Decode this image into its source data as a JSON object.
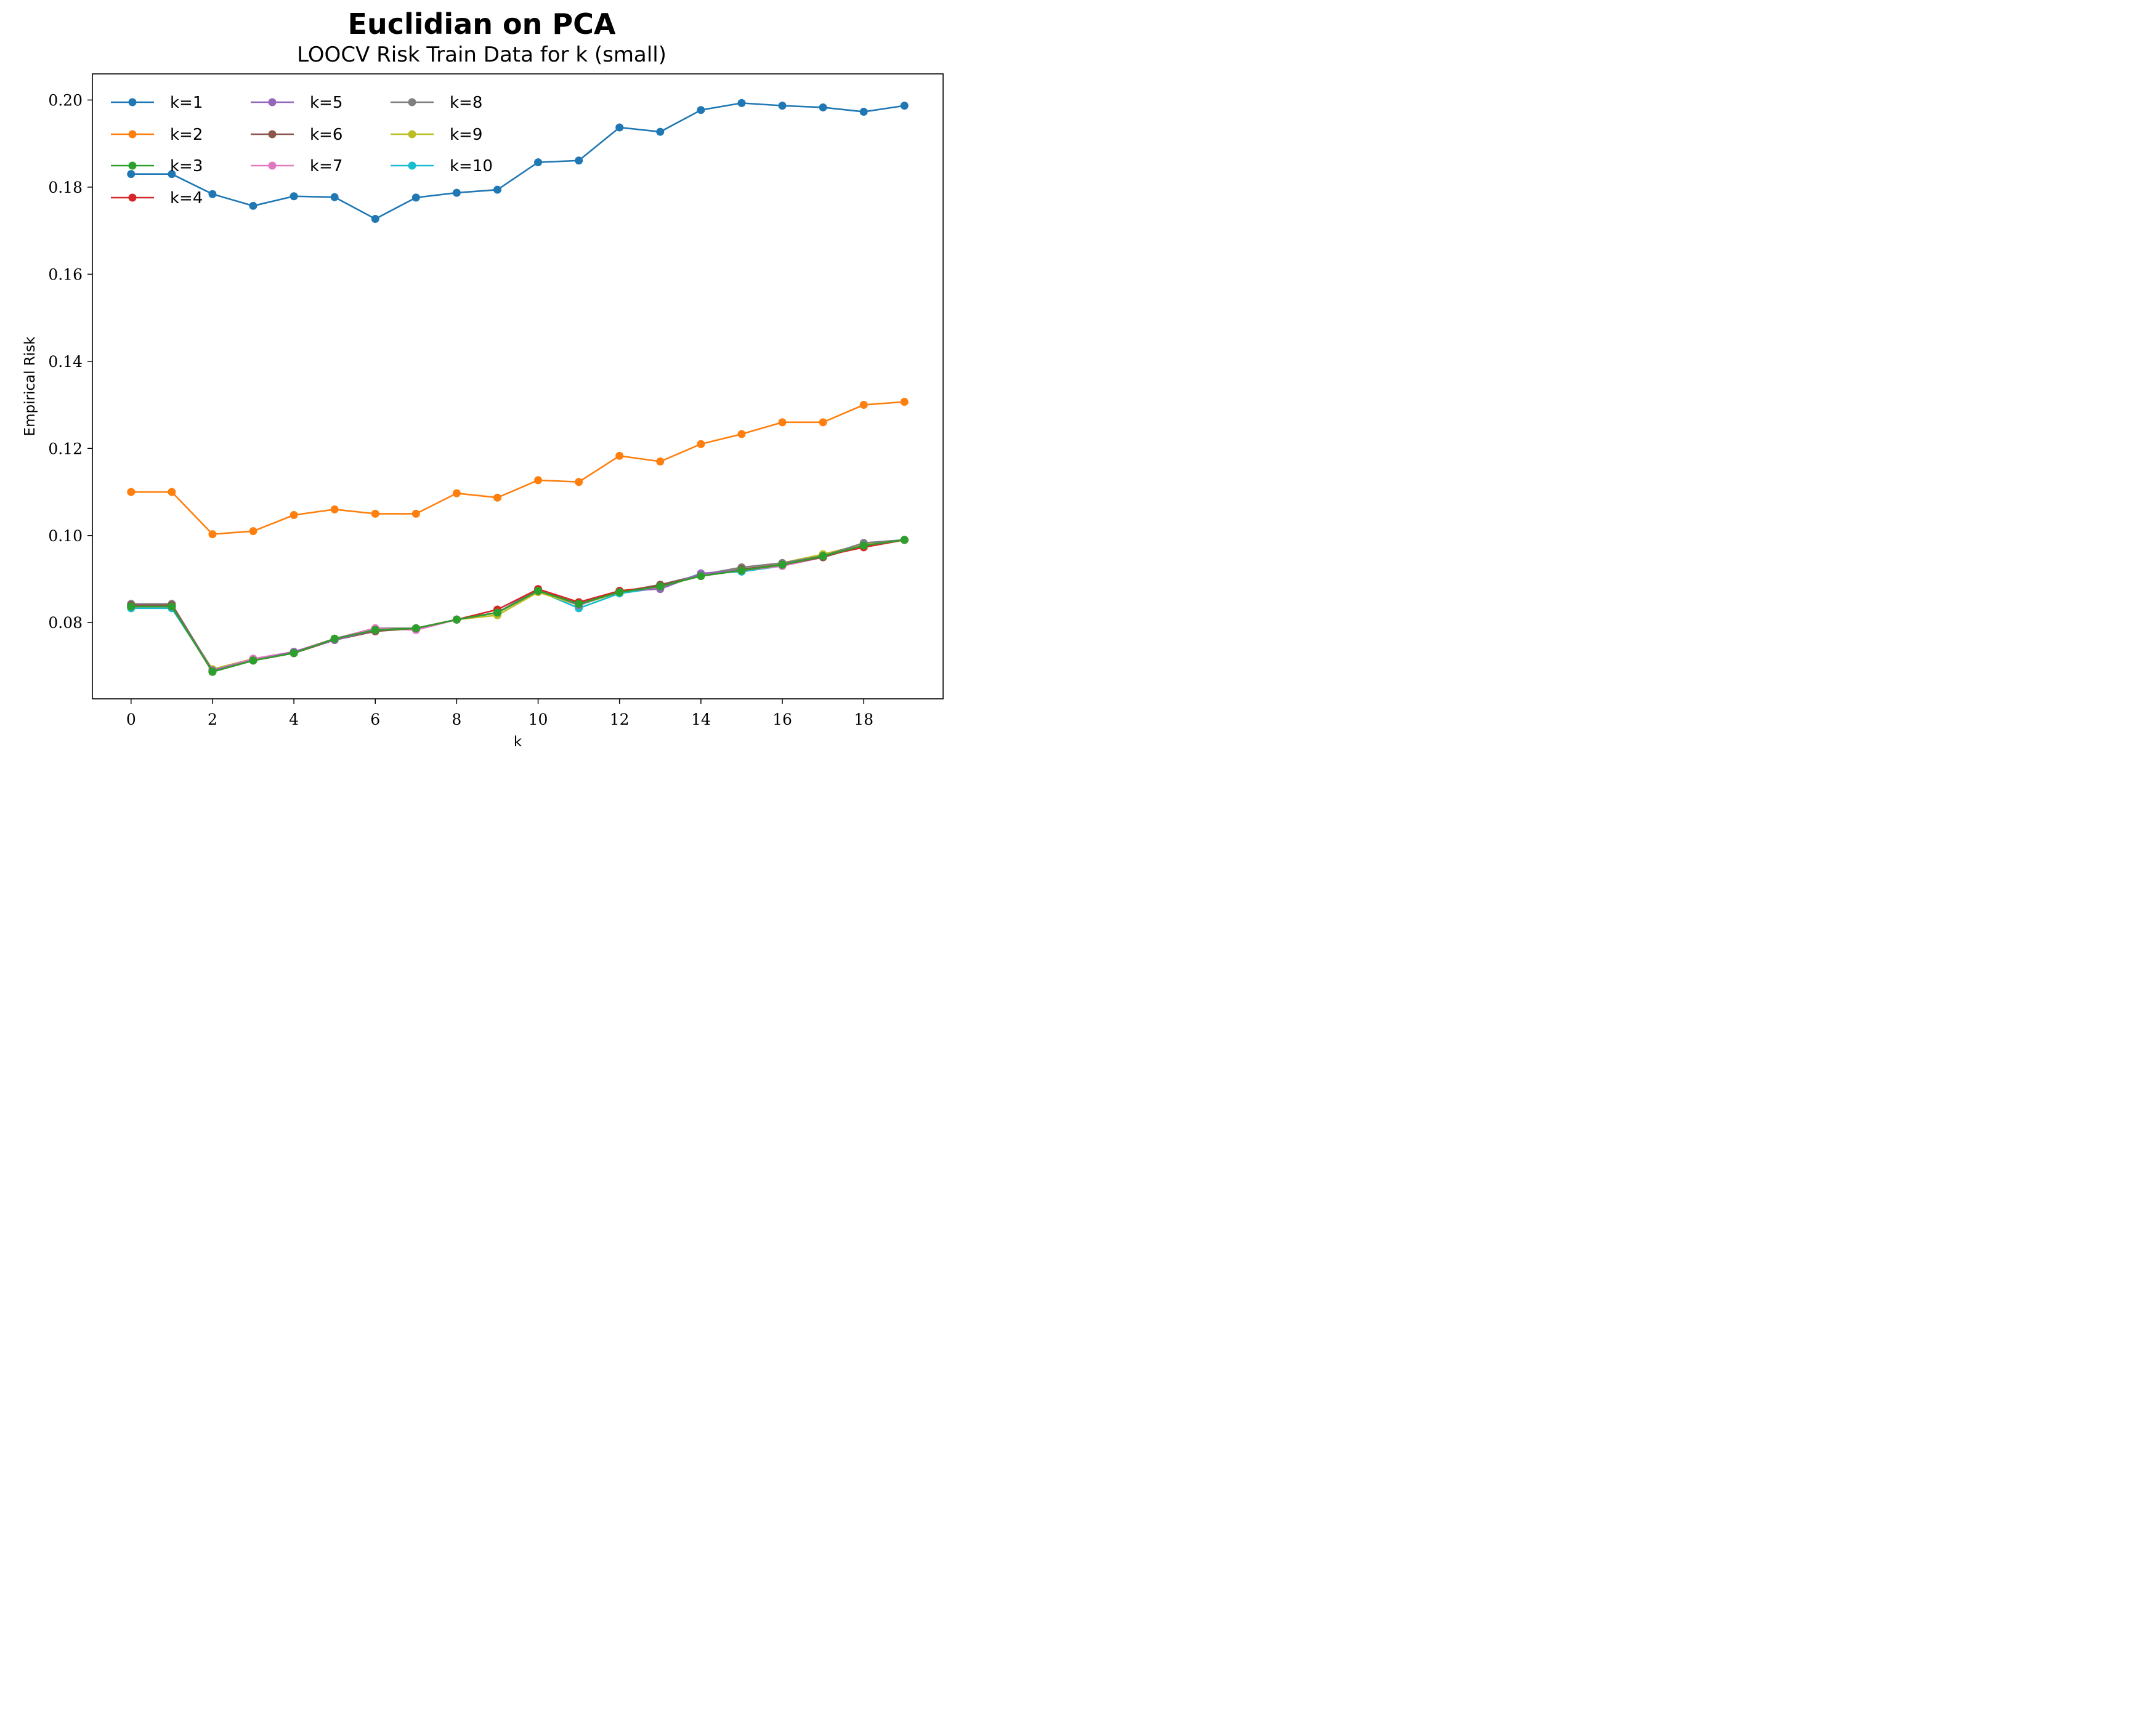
{
  "chart_data": {
    "type": "line",
    "title": "Euclidian on PCA",
    "subtitle": "LOOCV Risk Train Data for k (small)",
    "xlabel": "k",
    "ylabel": "Empirical Risk",
    "xlim": [
      -0.95,
      19.95
    ],
    "ylim": [
      0.0625,
      0.206
    ],
    "xticks": [
      0,
      2,
      4,
      6,
      8,
      10,
      12,
      14,
      16,
      18
    ],
    "xtick_labels": [
      "0",
      "2",
      "4",
      "6",
      "8",
      "10",
      "12",
      "14",
      "16",
      "18"
    ],
    "yticks": [
      0.08,
      0.1,
      0.12,
      0.14,
      0.16,
      0.18,
      0.2
    ],
    "ytick_labels": [
      "0.08",
      "0.10",
      "0.12",
      "0.14",
      "0.16",
      "0.18",
      "0.20"
    ],
    "grid": false,
    "legend": {
      "placement": "top-left",
      "columns": 3
    },
    "x": [
      0,
      1,
      2,
      3,
      4,
      5,
      6,
      7,
      8,
      9,
      10,
      11,
      12,
      13,
      14,
      15,
      16,
      17,
      18,
      19
    ],
    "series": [
      {
        "name": "k=1",
        "color": "#1f77b4",
        "values": [
          0.183,
          0.183,
          0.1784,
          0.1757,
          0.1779,
          0.1777,
          0.1727,
          0.1776,
          0.1787,
          0.1794,
          0.1857,
          0.1861,
          0.1937,
          0.1927,
          0.1977,
          0.1993,
          0.1987,
          0.1983,
          0.1973,
          0.1987
        ]
      },
      {
        "name": "k=2",
        "color": "#ff7f0e",
        "values": [
          0.11,
          0.11,
          0.1003,
          0.101,
          0.1047,
          0.106,
          0.105,
          0.105,
          0.1097,
          0.1087,
          0.1127,
          0.1123,
          0.1183,
          0.117,
          0.121,
          0.1233,
          0.126,
          0.126,
          0.13,
          0.1307
        ]
      },
      {
        "name": "k=3",
        "color": "#2ca02c",
        "values": [
          0.0837,
          0.0837,
          0.0687,
          0.0713,
          0.073,
          0.0763,
          0.0783,
          0.0787,
          0.0807,
          0.0823,
          0.0873,
          0.0843,
          0.087,
          0.0883,
          0.0907,
          0.092,
          0.0933,
          0.0953,
          0.0977,
          0.099
        ]
      },
      {
        "name": "k=4",
        "color": "#d62728",
        "values": [
          0.0837,
          0.0837,
          0.0687,
          0.0713,
          0.073,
          0.0763,
          0.0783,
          0.0787,
          0.0807,
          0.083,
          0.0877,
          0.0847,
          0.0873,
          0.0883,
          0.0907,
          0.092,
          0.0933,
          0.0953,
          0.0973,
          0.099
        ]
      },
      {
        "name": "k=5",
        "color": "#9467bd",
        "values": [
          0.0837,
          0.0837,
          0.069,
          0.0713,
          0.0733,
          0.076,
          0.0783,
          0.0787,
          0.0807,
          0.0823,
          0.0877,
          0.084,
          0.0873,
          0.0877,
          0.0913,
          0.092,
          0.0933,
          0.0953,
          0.0977,
          0.099
        ]
      },
      {
        "name": "k=6",
        "color": "#8c564b",
        "values": [
          0.084,
          0.084,
          0.069,
          0.0713,
          0.073,
          0.076,
          0.078,
          0.0787,
          0.0807,
          0.0823,
          0.0873,
          0.0843,
          0.087,
          0.0887,
          0.0907,
          0.0923,
          0.0933,
          0.095,
          0.0977,
          0.099
        ]
      },
      {
        "name": "k=7",
        "color": "#e377c2",
        "values": [
          0.0837,
          0.0837,
          0.069,
          0.0717,
          0.0733,
          0.0763,
          0.0787,
          0.0783,
          0.0807,
          0.0823,
          0.0873,
          0.0843,
          0.0873,
          0.088,
          0.091,
          0.092,
          0.093,
          0.095,
          0.0977,
          0.099
        ]
      },
      {
        "name": "k=8",
        "color": "#7f7f7f",
        "values": [
          0.0843,
          0.0843,
          0.069,
          0.0717,
          0.073,
          0.0763,
          0.0787,
          0.0787,
          0.0807,
          0.0823,
          0.0873,
          0.0843,
          0.087,
          0.0887,
          0.091,
          0.0927,
          0.0937,
          0.0953,
          0.0983,
          0.099
        ]
      },
      {
        "name": "k=9",
        "color": "#bcbd22",
        "values": [
          0.0837,
          0.0837,
          0.0693,
          0.0717,
          0.0733,
          0.0763,
          0.0787,
          0.0787,
          0.0807,
          0.0817,
          0.087,
          0.084,
          0.087,
          0.0883,
          0.091,
          0.092,
          0.0937,
          0.0957,
          0.098,
          0.099
        ]
      },
      {
        "name": "k=10",
        "color": "#17becf",
        "values": [
          0.0833,
          0.0833,
          0.069,
          0.0717,
          0.073,
          0.0763,
          0.0787,
          0.0787,
          0.0807,
          0.0823,
          0.0873,
          0.0833,
          0.0867,
          0.088,
          0.0913,
          0.0917,
          0.093,
          0.0957,
          0.0977,
          0.099
        ]
      }
    ]
  }
}
